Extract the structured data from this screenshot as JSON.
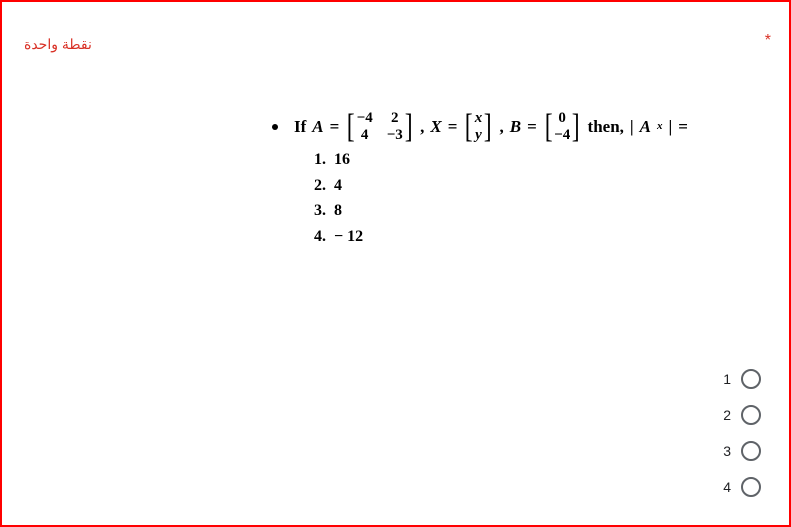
{
  "meta": {
    "required_marker": "*",
    "points_label": "نقطة واحدة"
  },
  "question": {
    "prefix": "If ",
    "A_label": "A",
    "eq": " = ",
    "matrix_A": {
      "r1c1": "−4",
      "r1c2": "2",
      "r2c1": "4",
      "r2c2": "−3"
    },
    "X_label": "X",
    "matrix_X": {
      "r1": "x",
      "r2": "y"
    },
    "B_label": "B",
    "matrix_B": {
      "r1": "0",
      "r2": "−4"
    },
    "then_text": " then,",
    "det_open": "|",
    "det_A": "A",
    "det_sub": "x",
    "det_close": "|",
    "equals_tail": " ="
  },
  "answers": {
    "a1_num": "1.",
    "a1_val": "16",
    "a2_num": "2.",
    "a2_val": "4",
    "a3_num": "3.",
    "a3_val": "8",
    "a4_num": "4.",
    "a4_val": "− 12"
  },
  "options": {
    "o1": "1",
    "o2": "2",
    "o3": "3",
    "o4": "4"
  }
}
